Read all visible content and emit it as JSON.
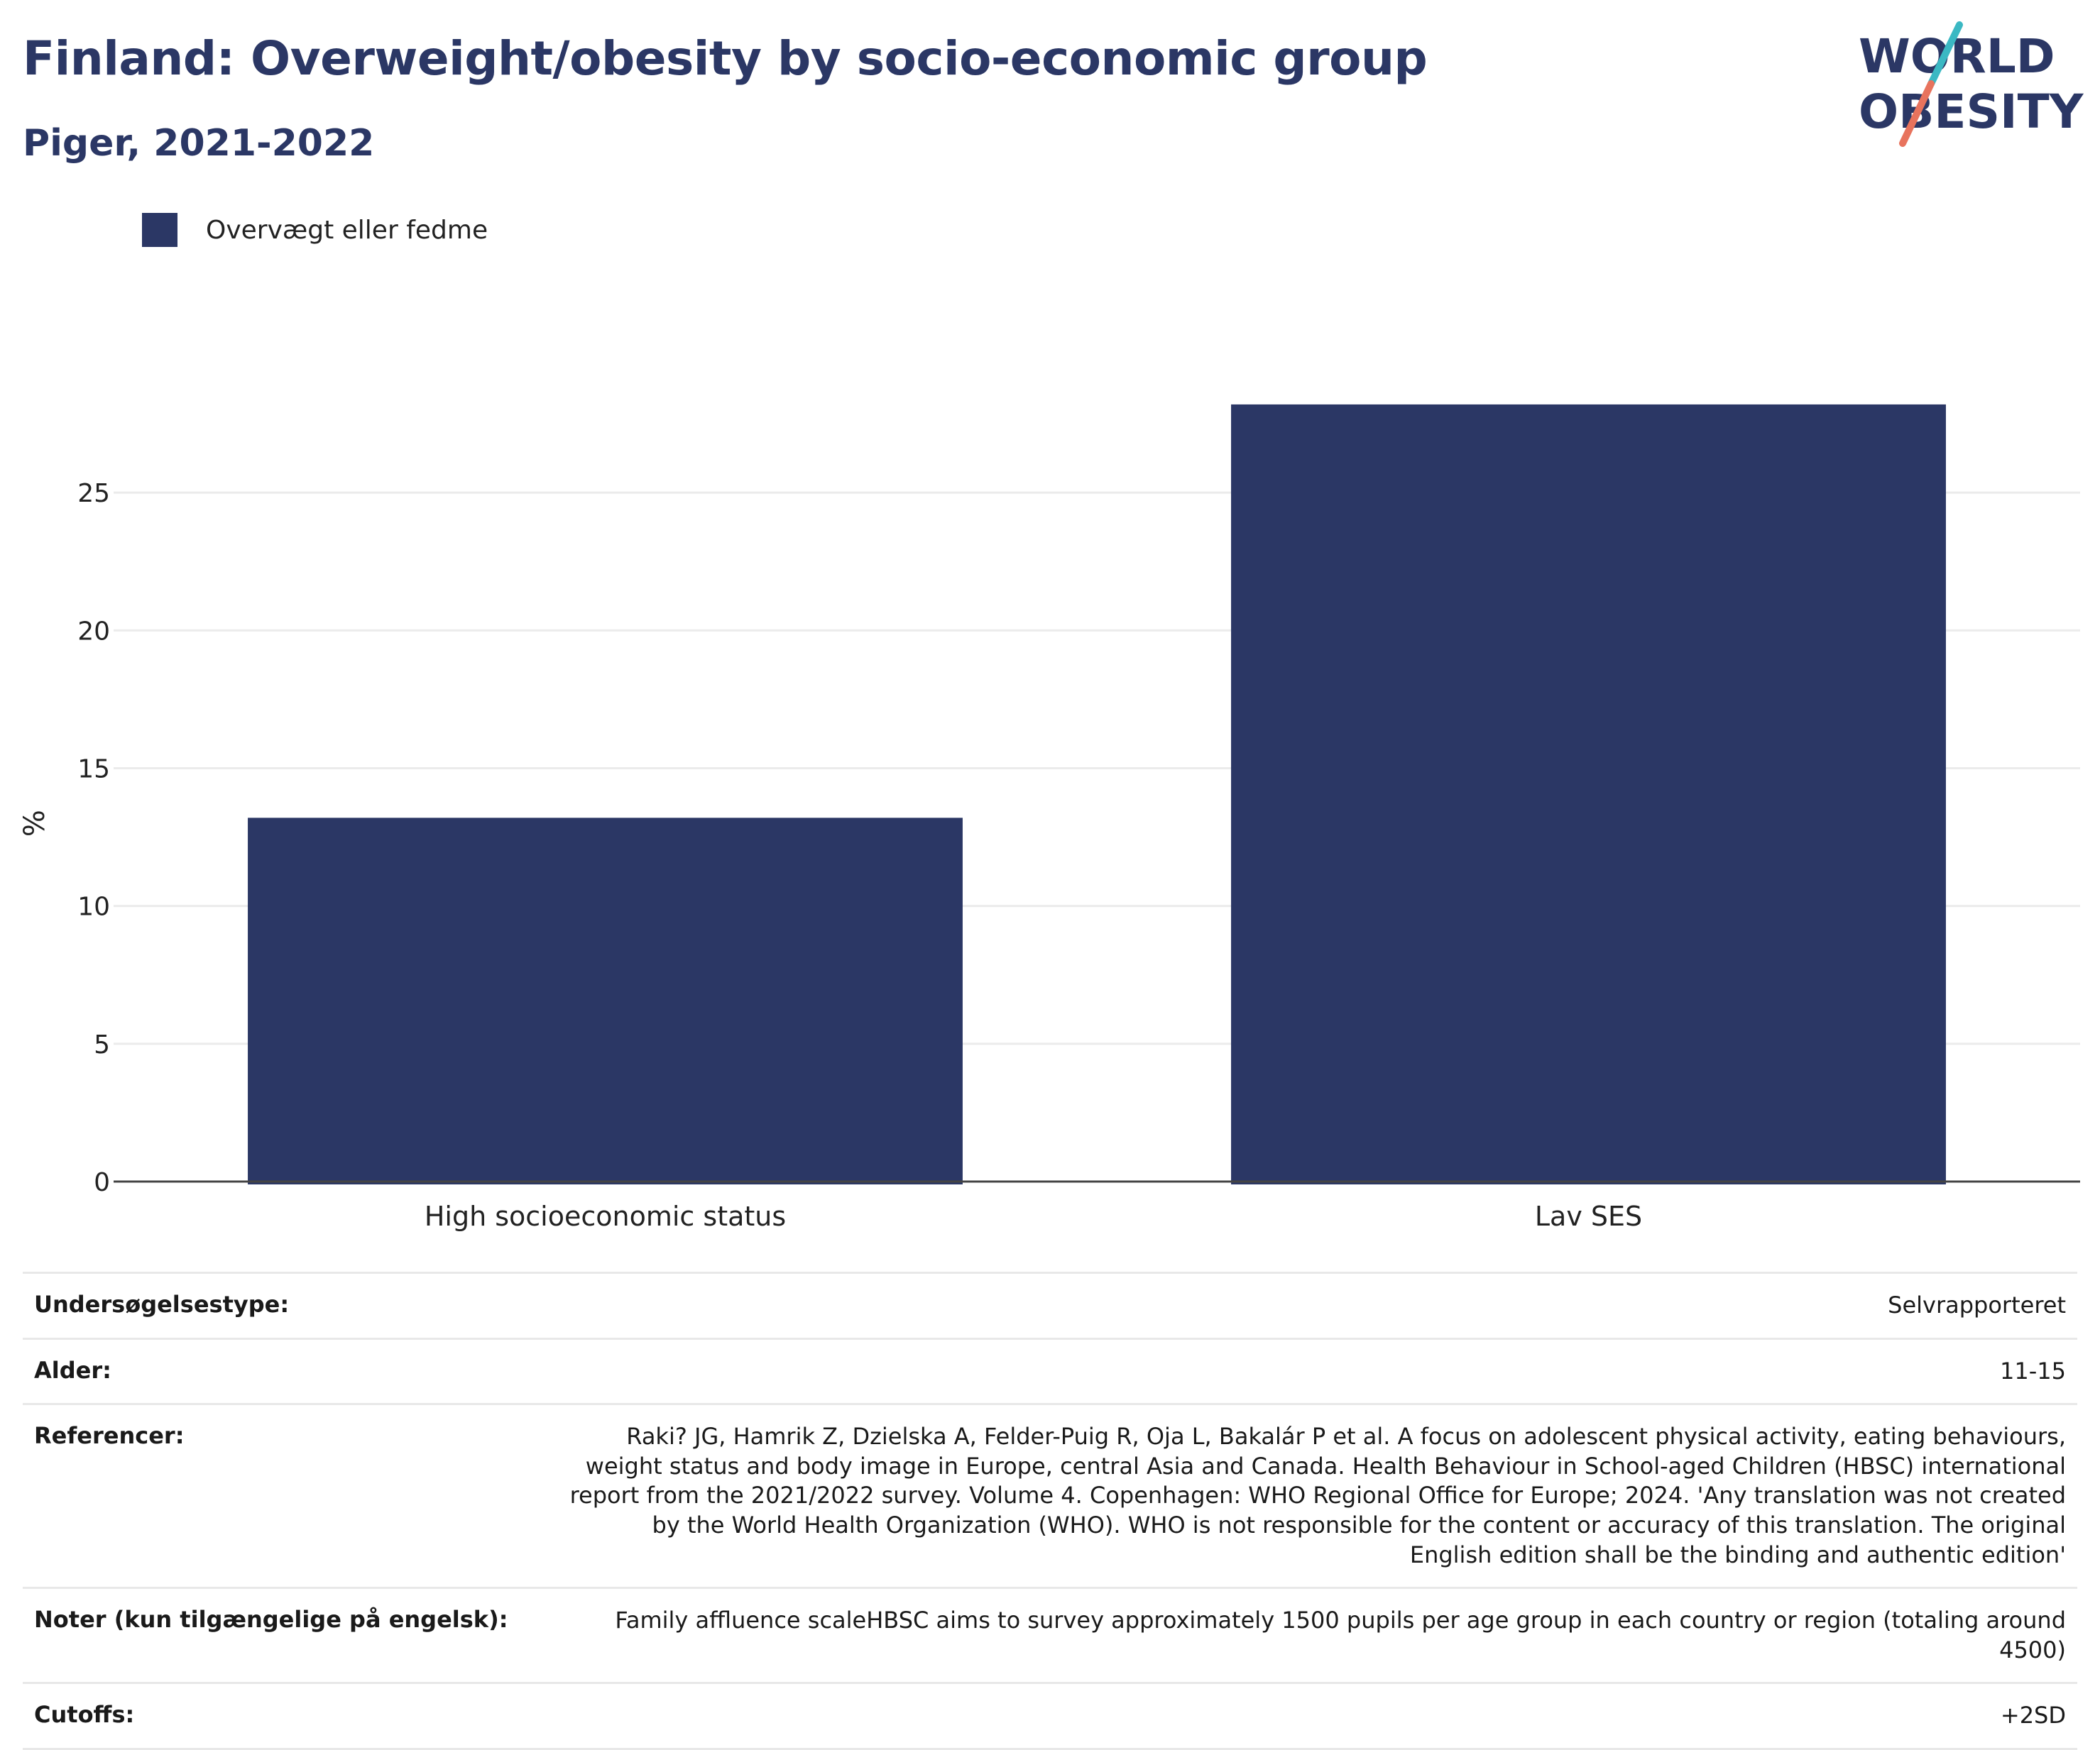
{
  "header": {
    "title": "Finland: Overweight/obesity by socio-economic group",
    "subtitle": "Piger, 2021-2022"
  },
  "logo": {
    "line1": "WORLD",
    "line2": "OBESITY",
    "colors": {
      "text": "#2b3765",
      "slash_top": "#3bb8c3",
      "slash_bottom": "#e8735d"
    }
  },
  "chart_data": {
    "type": "bar",
    "categories": [
      "High socioeconomic status",
      "Lav SES"
    ],
    "series": [
      {
        "name": "Overvægt eller fedme",
        "values": [
          13.2,
          28.2
        ],
        "color": "#2b3765"
      }
    ],
    "title": "Finland: Overweight/obesity by socio-economic group",
    "subtitle": "Piger, 2021-2022",
    "xlabel": "",
    "ylabel": "%",
    "ylim": [
      0,
      30
    ],
    "yticks": [
      0,
      5,
      10,
      15,
      20,
      25
    ],
    "grid": true,
    "legend_position": "top-left"
  },
  "info": [
    {
      "label": "Undersøgelsestype:",
      "value": "Selvrapporteret"
    },
    {
      "label": "Alder:",
      "value": "11-15"
    },
    {
      "label": "Referencer:",
      "value": "Raki? JG, Hamrik Z, Dzielska A, Felder-Puig R, Oja L, Bakalár P et al. A focus on adolescent physical activity, eating behaviours, weight status and body image in Europe, central Asia and Canada. Health Behaviour in School-aged Children (HBSC) international report from the 2021/2022 survey. Volume 4. Copenhagen: WHO Regional Office for Europe; 2024. 'Any translation was not created by the World Health Organization (WHO). WHO is not responsible for the content or accuracy of this translation. The original English edition shall be the binding and authentic edition'"
    },
    {
      "label": "Noter (kun tilgængelige på engelsk):",
      "value": "Family affluence scaleHBSC aims to survey approximately 1500 pupils per age group in each country or region (totaling around 4500)"
    },
    {
      "label": "Cutoffs:",
      "value": "+2SD"
    }
  ]
}
